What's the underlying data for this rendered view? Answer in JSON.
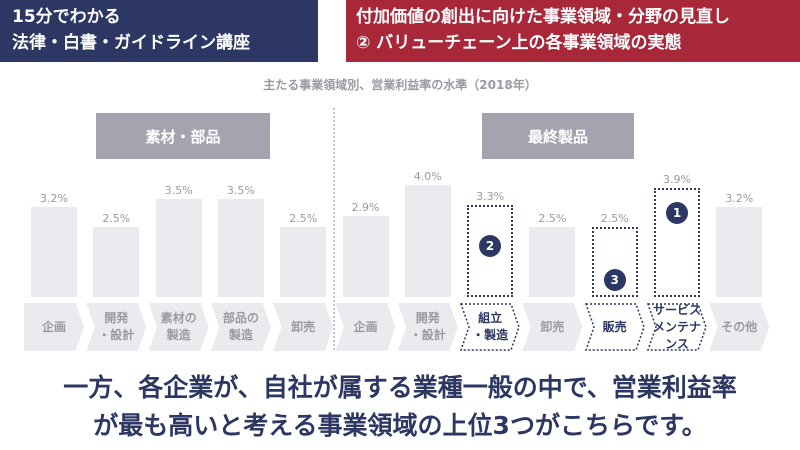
{
  "header": {
    "left_line1": "15分でわかる",
    "left_line2": "法律・白書・ガイドライン講座",
    "right_line1": "付加価値の創出に向けた事業領域・分野の見直し",
    "right_line2": "② バリューチェーン上の各事業領域の実態"
  },
  "chart_data": {
    "type": "bar",
    "title": "主たる事業領域別、営業利益率の水準（2018年）",
    "groups": [
      {
        "label": "素材・部品"
      },
      {
        "label": "最終製品"
      }
    ],
    "categories": [
      "企画",
      "開発\n・設計",
      "素材の\n製造",
      "部品の\n製造",
      "卸売",
      "企画",
      "開発\n・設計",
      "組立\n・製造",
      "卸売",
      "販売",
      "サービス\nメンテナンス",
      "その他"
    ],
    "values": [
      3.2,
      2.5,
      3.5,
      3.5,
      2.5,
      2.9,
      4.0,
      3.3,
      2.5,
      2.5,
      3.9,
      3.2
    ],
    "value_labels": [
      "3.2%",
      "2.5%",
      "3.5%",
      "3.5%",
      "2.5%",
      "2.9%",
      "4.0%",
      "3.3%",
      "2.5%",
      "2.5%",
      "3.9%",
      "3.2%"
    ],
    "highlight_ranks": [
      {
        "index": 10,
        "rank": "1"
      },
      {
        "index": 7,
        "rank": "2"
      },
      {
        "index": 9,
        "rank": "3"
      }
    ],
    "unit": "%",
    "ylim": [
      0,
      4.0
    ],
    "grid": false,
    "colors": {
      "bar": "#ebebef",
      "highlight": "#2c3763",
      "group_label": "#a3a4b0"
    }
  },
  "caption": {
    "line1": "一方、各企業が、自社が属する業種一般の中で、営業利益率",
    "line2": "が最も高いと考える事業領域の上位3つがこちらです。"
  },
  "colors": {
    "navy": "#2c3763",
    "red": "#a8283a"
  }
}
